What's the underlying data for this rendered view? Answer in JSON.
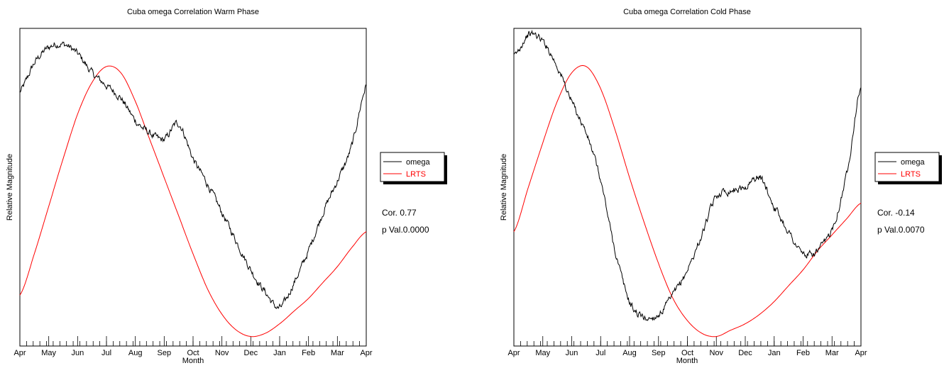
{
  "colors": {
    "omega": "#000000",
    "lrts": "#ff0000",
    "frame": "#000000"
  },
  "chart_data": [
    {
      "type": "line",
      "title": "Cuba omega Correlation Warm Phase",
      "xlabel": "Month",
      "ylabel": "Relative Magnitude",
      "x_tick_labels": [
        "Apr",
        "May",
        "Jun",
        "Jul",
        "Aug",
        "Sep",
        "Oct",
        "Nov",
        "Dec",
        "Jan",
        "Feb",
        "Mar",
        "Apr"
      ],
      "ylim": [
        0,
        1
      ],
      "grid": false,
      "legend_placement": "right",
      "series": [
        {
          "name": "omega",
          "color": "#000000",
          "x": [
            0,
            0.5,
            1,
            1.5,
            2,
            2.5,
            3,
            3.5,
            4,
            4.5,
            5,
            5.5,
            6,
            6.5,
            7,
            7.5,
            8,
            8.5,
            9,
            9.5,
            10,
            10.5,
            11,
            11.5,
            12
          ],
          "values": [
            0.8,
            0.89,
            0.94,
            0.95,
            0.92,
            0.86,
            0.82,
            0.78,
            0.71,
            0.67,
            0.65,
            0.7,
            0.59,
            0.51,
            0.42,
            0.33,
            0.24,
            0.17,
            0.12,
            0.2,
            0.3,
            0.42,
            0.52,
            0.63,
            0.82
          ]
        },
        {
          "name": "LRTS",
          "color": "#ff0000",
          "x": [
            0,
            0.5,
            1,
            1.5,
            2,
            2.5,
            3,
            3.5,
            4,
            4.5,
            5,
            5.5,
            6,
            6.5,
            7,
            7.5,
            8,
            8.5,
            9,
            9.5,
            10,
            10.5,
            11,
            11.5,
            12
          ],
          "values": [
            0.16,
            0.29,
            0.44,
            0.59,
            0.73,
            0.83,
            0.88,
            0.86,
            0.77,
            0.65,
            0.53,
            0.41,
            0.29,
            0.18,
            0.1,
            0.05,
            0.03,
            0.04,
            0.07,
            0.11,
            0.15,
            0.2,
            0.25,
            0.31,
            0.36
          ]
        }
      ],
      "annotations": {
        "cor": "Cor. 0.77",
        "pval": "p Val.0.0000"
      }
    },
    {
      "type": "line",
      "title": "Cuba omega Correlation Cold Phase",
      "xlabel": "Month",
      "ylabel": "Relative Magnitude",
      "x_tick_labels": [
        "Apr",
        "May",
        "Jun",
        "Jul",
        "Aug",
        "Sep",
        "Oct",
        "Nov",
        "Dec",
        "Jan",
        "Feb",
        "Mar",
        "Apr"
      ],
      "ylim": [
        0,
        1
      ],
      "grid": false,
      "legend_placement": "right",
      "series": [
        {
          "name": "omega",
          "color": "#000000",
          "x": [
            0,
            0.5,
            1,
            1.5,
            2,
            2.5,
            3,
            3.5,
            4,
            4.5,
            5,
            5.5,
            6,
            6.5,
            7,
            7.5,
            8,
            8.5,
            9,
            9.5,
            10,
            10.5,
            11,
            11.5,
            12
          ],
          "values": [
            0.91,
            0.98,
            0.96,
            0.88,
            0.77,
            0.67,
            0.52,
            0.3,
            0.14,
            0.09,
            0.1,
            0.16,
            0.24,
            0.35,
            0.47,
            0.49,
            0.5,
            0.53,
            0.44,
            0.36,
            0.29,
            0.3,
            0.37,
            0.54,
            0.82
          ]
        },
        {
          "name": "LRTS",
          "color": "#ff0000",
          "x": [
            0,
            0.5,
            1,
            1.5,
            2,
            2.5,
            3,
            3.5,
            4,
            4.5,
            5,
            5.5,
            6,
            6.5,
            7,
            7.5,
            8,
            8.5,
            9,
            9.5,
            10,
            10.5,
            11,
            11.5,
            12
          ],
          "values": [
            0.36,
            0.5,
            0.64,
            0.77,
            0.86,
            0.88,
            0.81,
            0.68,
            0.53,
            0.39,
            0.26,
            0.15,
            0.08,
            0.04,
            0.03,
            0.05,
            0.07,
            0.1,
            0.14,
            0.19,
            0.24,
            0.3,
            0.35,
            0.4,
            0.45
          ]
        }
      ],
      "annotations": {
        "cor": "Cor. -0.14",
        "pval": "p Val.0.0070"
      }
    }
  ]
}
